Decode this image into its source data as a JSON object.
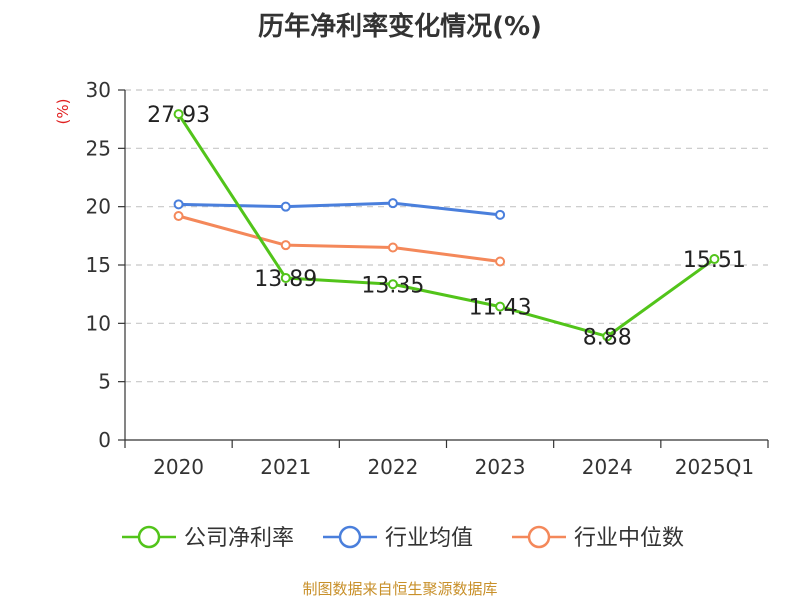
{
  "chart_data": {
    "type": "line",
    "title": "历年净利率变化情况(%)",
    "ylabel": "(%)",
    "categories": [
      "2020",
      "2021",
      "2022",
      "2023",
      "2024",
      "2025Q1"
    ],
    "ylim": [
      0,
      30
    ],
    "yticks": [
      0,
      5,
      10,
      15,
      20,
      25,
      30
    ],
    "grid": true,
    "legend_position": "bottom",
    "series": [
      {
        "name": "公司净利率",
        "color": "#52c41a",
        "values": [
          27.93,
          13.89,
          13.35,
          11.43,
          8.88,
          15.51
        ],
        "labels": [
          "27.93",
          "13.89",
          "13.35",
          "11.43",
          "8.88",
          "15.51"
        ]
      },
      {
        "name": "行业均值",
        "color": "#4a7fdc",
        "values": [
          20.2,
          20.0,
          20.3,
          19.3,
          null,
          null
        ]
      },
      {
        "name": "行业中位数",
        "color": "#f4885a",
        "values": [
          19.2,
          16.7,
          16.5,
          15.3,
          null,
          null
        ]
      }
    ]
  },
  "source": "制图数据来自恒生聚源数据库"
}
